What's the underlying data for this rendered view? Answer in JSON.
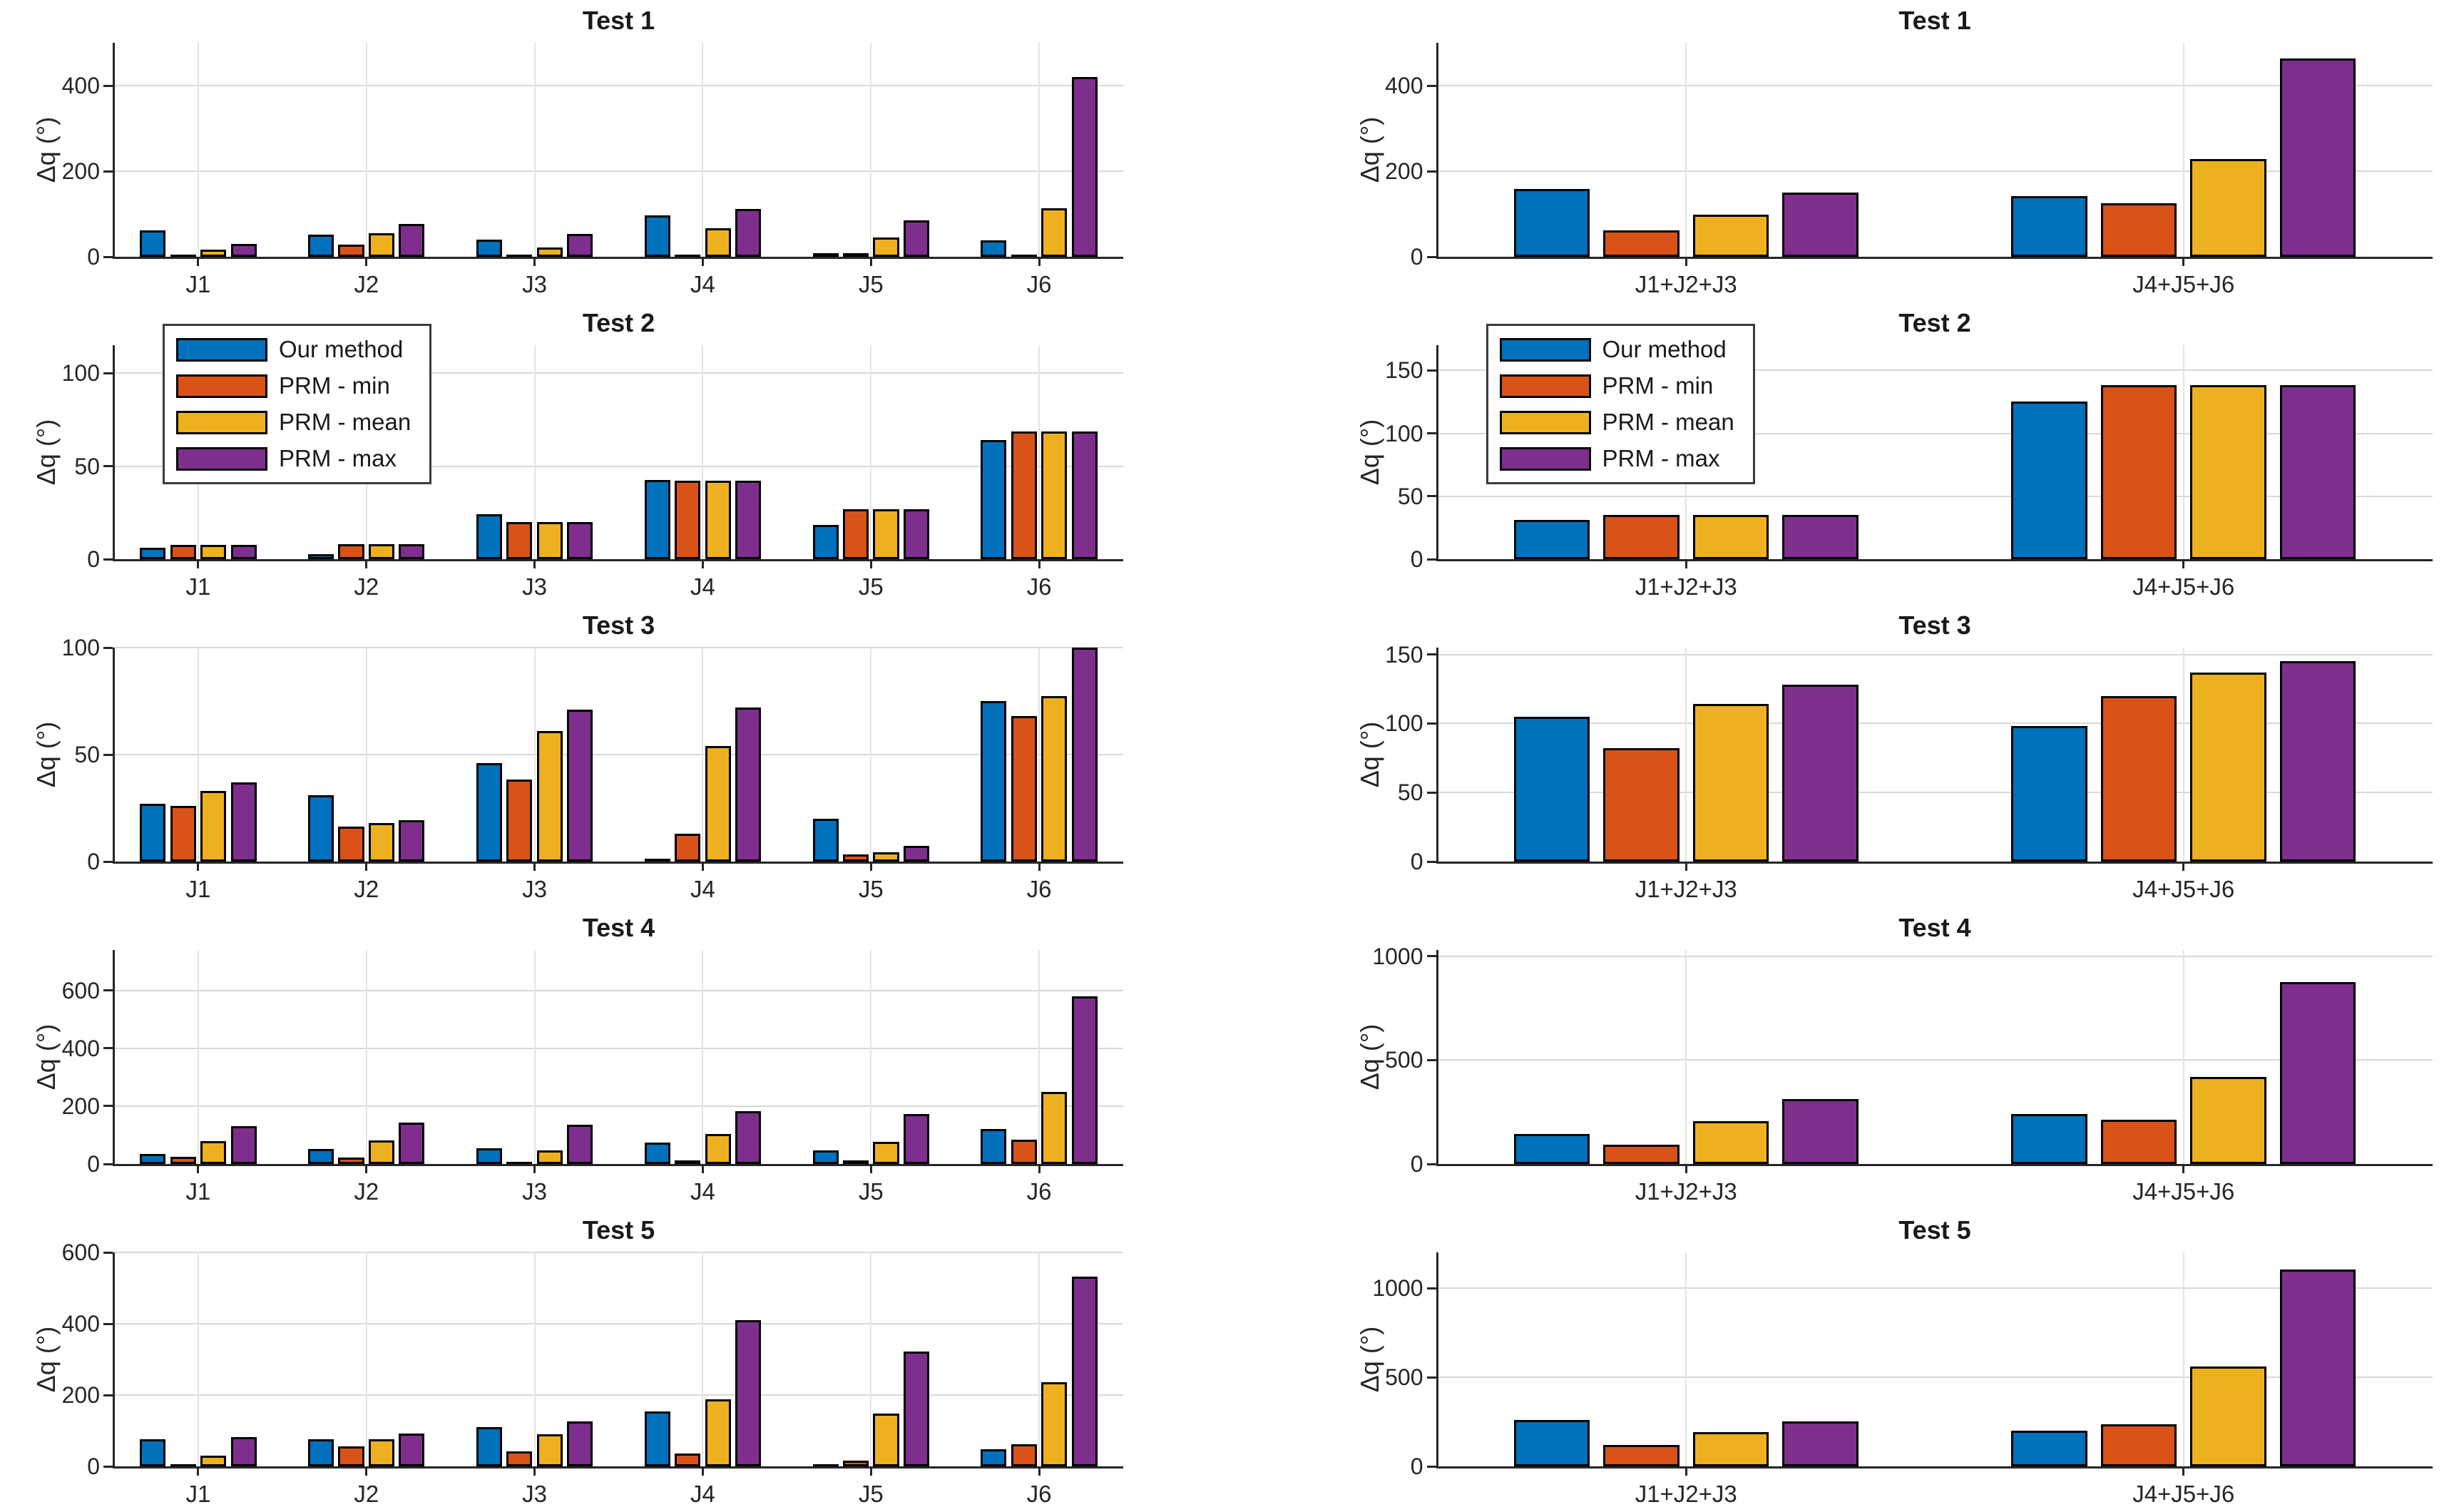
{
  "figure": {
    "background": "#ffffff",
    "axis_color": "#262626",
    "ylabel": "Δq (°)"
  },
  "legend": {
    "position": "northwest",
    "items": [
      {
        "label": "Our method",
        "color": "#0072BD"
      },
      {
        "label": "PRM - min",
        "color": "#D95319"
      },
      {
        "label": "PRM - mean",
        "color": "#EDB120"
      },
      {
        "label": "PRM - max",
        "color": "#7E2F8E"
      }
    ]
  },
  "chart_data": [
    {
      "id": "test1-joints",
      "type": "bar",
      "title": "Test 1",
      "ylabel": "Δq (°)",
      "grid": true,
      "legend": false,
      "categories": [
        "J1",
        "J2",
        "J3",
        "J4",
        "J5",
        "J6"
      ],
      "yticks": [
        0,
        200,
        400
      ],
      "ylim": [
        0,
        500
      ],
      "series": [
        {
          "name": "Our method",
          "color": "#0072BD",
          "values": [
            62,
            52,
            40,
            97,
            8,
            38
          ]
        },
        {
          "name": "PRM - min",
          "color": "#D95319",
          "values": [
            2,
            28,
            2,
            3,
            9,
            2
          ]
        },
        {
          "name": "PRM - mean",
          "color": "#EDB120",
          "values": [
            16,
            55,
            21,
            66,
            45,
            113
          ]
        },
        {
          "name": "PRM - max",
          "color": "#7E2F8E",
          "values": [
            30,
            76,
            54,
            112,
            85,
            420
          ]
        }
      ]
    },
    {
      "id": "test1-grouped",
      "type": "bar",
      "title": "Test 1",
      "ylabel": "Δq (°)",
      "grid": true,
      "legend": false,
      "categories": [
        "J1+J2+J3",
        "J4+J5+J6"
      ],
      "yticks": [
        0,
        200,
        400
      ],
      "ylim": [
        0,
        500
      ],
      "series": [
        {
          "name": "Our method",
          "color": "#0072BD",
          "values": [
            159,
            141
          ]
        },
        {
          "name": "PRM - min",
          "color": "#D95319",
          "values": [
            62,
            125
          ]
        },
        {
          "name": "PRM - mean",
          "color": "#EDB120",
          "values": [
            98,
            229
          ]
        },
        {
          "name": "PRM - max",
          "color": "#7E2F8E",
          "values": [
            150,
            463
          ]
        }
      ]
    },
    {
      "id": "test2-joints",
      "type": "bar",
      "title": "Test 2",
      "ylabel": "Δq (°)",
      "grid": true,
      "legend": true,
      "categories": [
        "J1",
        "J2",
        "J3",
        "J4",
        "J5",
        "J6"
      ],
      "yticks": [
        0,
        50,
        100
      ],
      "ylim": [
        0,
        115
      ],
      "series": [
        {
          "name": "Our method",
          "color": "#0072BD",
          "values": [
            6,
            2.5,
            24,
            42.5,
            18.5,
            64
          ]
        },
        {
          "name": "PRM - min",
          "color": "#D95319",
          "values": [
            7.5,
            8,
            20,
            42,
            27,
            68.5
          ]
        },
        {
          "name": "PRM - mean",
          "color": "#EDB120",
          "values": [
            7.5,
            8,
            20,
            42,
            27,
            68.5
          ]
        },
        {
          "name": "PRM - max",
          "color": "#7E2F8E",
          "values": [
            7.5,
            8,
            20,
            42,
            27,
            68.5
          ]
        }
      ]
    },
    {
      "id": "test2-grouped",
      "type": "bar",
      "title": "Test 2",
      "ylabel": "Δq (°)",
      "grid": true,
      "legend": true,
      "categories": [
        "J1+J2+J3",
        "J4+J5+J6"
      ],
      "yticks": [
        0,
        50,
        100,
        150
      ],
      "ylim": [
        0,
        170
      ],
      "series": [
        {
          "name": "Our method",
          "color": "#0072BD",
          "values": [
            31,
            125
          ]
        },
        {
          "name": "PRM - min",
          "color": "#D95319",
          "values": [
            35,
            138
          ]
        },
        {
          "name": "PRM - mean",
          "color": "#EDB120",
          "values": [
            35,
            138
          ]
        },
        {
          "name": "PRM - max",
          "color": "#7E2F8E",
          "values": [
            35,
            138
          ]
        }
      ]
    },
    {
      "id": "test3-joints",
      "type": "bar",
      "title": "Test 3",
      "ylabel": "Δq (°)",
      "grid": true,
      "legend": false,
      "categories": [
        "J1",
        "J2",
        "J3",
        "J4",
        "J5",
        "J6"
      ],
      "yticks": [
        0,
        50,
        100
      ],
      "ylim": [
        0,
        100
      ],
      "series": [
        {
          "name": "Our method",
          "color": "#0072BD",
          "values": [
            27,
            31,
            46,
            1.5,
            20,
            75
          ]
        },
        {
          "name": "PRM - min",
          "color": "#D95319",
          "values": [
            26,
            16.5,
            38.5,
            13,
            3.5,
            68
          ]
        },
        {
          "name": "PRM - mean",
          "color": "#EDB120",
          "values": [
            33,
            18,
            61,
            54,
            4.5,
            77.5
          ]
        },
        {
          "name": "PRM - max",
          "color": "#7E2F8E",
          "values": [
            37,
            19.5,
            71,
            72,
            7.5,
            100
          ]
        }
      ]
    },
    {
      "id": "test3-grouped",
      "type": "bar",
      "title": "Test 3",
      "ylabel": "Δq (°)",
      "grid": true,
      "legend": false,
      "categories": [
        "J1+J2+J3",
        "J4+J5+J6"
      ],
      "yticks": [
        0,
        50,
        100,
        150
      ],
      "ylim": [
        0,
        155
      ],
      "series": [
        {
          "name": "Our method",
          "color": "#0072BD",
          "values": [
            105,
            98
          ]
        },
        {
          "name": "PRM - min",
          "color": "#D95319",
          "values": [
            82,
            120
          ]
        },
        {
          "name": "PRM - mean",
          "color": "#EDB120",
          "values": [
            114,
            137
          ]
        },
        {
          "name": "PRM - max",
          "color": "#7E2F8E",
          "values": [
            128,
            145
          ]
        }
      ]
    },
    {
      "id": "test4-joints",
      "type": "bar",
      "title": "Test 4",
      "ylabel": "Δq (°)",
      "grid": true,
      "legend": false,
      "categories": [
        "J1",
        "J2",
        "J3",
        "J4",
        "J5",
        "J6"
      ],
      "yticks": [
        0,
        200,
        400,
        600
      ],
      "ylim": [
        0,
        740
      ],
      "series": [
        {
          "name": "Our method",
          "color": "#0072BD",
          "values": [
            35,
            51,
            54,
            75,
            46,
            122
          ]
        },
        {
          "name": "PRM - min",
          "color": "#D95319",
          "values": [
            24,
            21,
            8,
            13,
            13,
            84
          ]
        },
        {
          "name": "PRM - mean",
          "color": "#EDB120",
          "values": [
            78,
            81,
            48,
            103,
            76,
            249
          ]
        },
        {
          "name": "PRM - max",
          "color": "#7E2F8E",
          "values": [
            130,
            143,
            135,
            183,
            173,
            580
          ]
        }
      ]
    },
    {
      "id": "test4-grouped",
      "type": "bar",
      "title": "Test 4",
      "ylabel": "Δq (°)",
      "grid": true,
      "legend": false,
      "categories": [
        "J1+J2+J3",
        "J4+J5+J6"
      ],
      "yticks": [
        0,
        500,
        1000
      ],
      "ylim": [
        0,
        1030
      ],
      "series": [
        {
          "name": "Our method",
          "color": "#0072BD",
          "values": [
            143,
            239
          ]
        },
        {
          "name": "PRM - min",
          "color": "#D95319",
          "values": [
            93,
            214
          ]
        },
        {
          "name": "PRM - mean",
          "color": "#EDB120",
          "values": [
            207,
            418
          ]
        },
        {
          "name": "PRM - max",
          "color": "#7E2F8E",
          "values": [
            314,
            875
          ]
        }
      ]
    },
    {
      "id": "test5-joints",
      "type": "bar",
      "title": "Test 5",
      "ylabel": "Δq (°)",
      "grid": true,
      "legend": false,
      "categories": [
        "J1",
        "J2",
        "J3",
        "J4",
        "J5",
        "J6"
      ],
      "yticks": [
        0,
        200,
        400,
        600
      ],
      "ylim": [
        0,
        600
      ],
      "series": [
        {
          "name": "Our method",
          "color": "#0072BD",
          "values": [
            76,
            76,
            111,
            154,
            4,
            48
          ]
        },
        {
          "name": "PRM - min",
          "color": "#D95319",
          "values": [
            7,
            56,
            43,
            37,
            17,
            63
          ]
        },
        {
          "name": "PRM - mean",
          "color": "#EDB120",
          "values": [
            30,
            76,
            91,
            189,
            148,
            237
          ]
        },
        {
          "name": "PRM - max",
          "color": "#7E2F8E",
          "values": [
            83,
            93,
            126,
            410,
            322,
            532
          ]
        }
      ]
    },
    {
      "id": "test5-grouped",
      "type": "bar",
      "title": "Test 5",
      "ylabel": "Δq (°)",
      "grid": true,
      "legend": false,
      "categories": [
        "J1+J2+J3",
        "J4+J5+J6"
      ],
      "yticks": [
        0,
        500,
        1000
      ],
      "ylim": [
        0,
        1200
      ],
      "series": [
        {
          "name": "Our method",
          "color": "#0072BD",
          "values": [
            260,
            200
          ]
        },
        {
          "name": "PRM - min",
          "color": "#D95319",
          "values": [
            120,
            235
          ]
        },
        {
          "name": "PRM - mean",
          "color": "#EDB120",
          "values": [
            192,
            559
          ]
        },
        {
          "name": "PRM - max",
          "color": "#7E2F8E",
          "values": [
            252,
            1106
          ]
        }
      ]
    }
  ]
}
